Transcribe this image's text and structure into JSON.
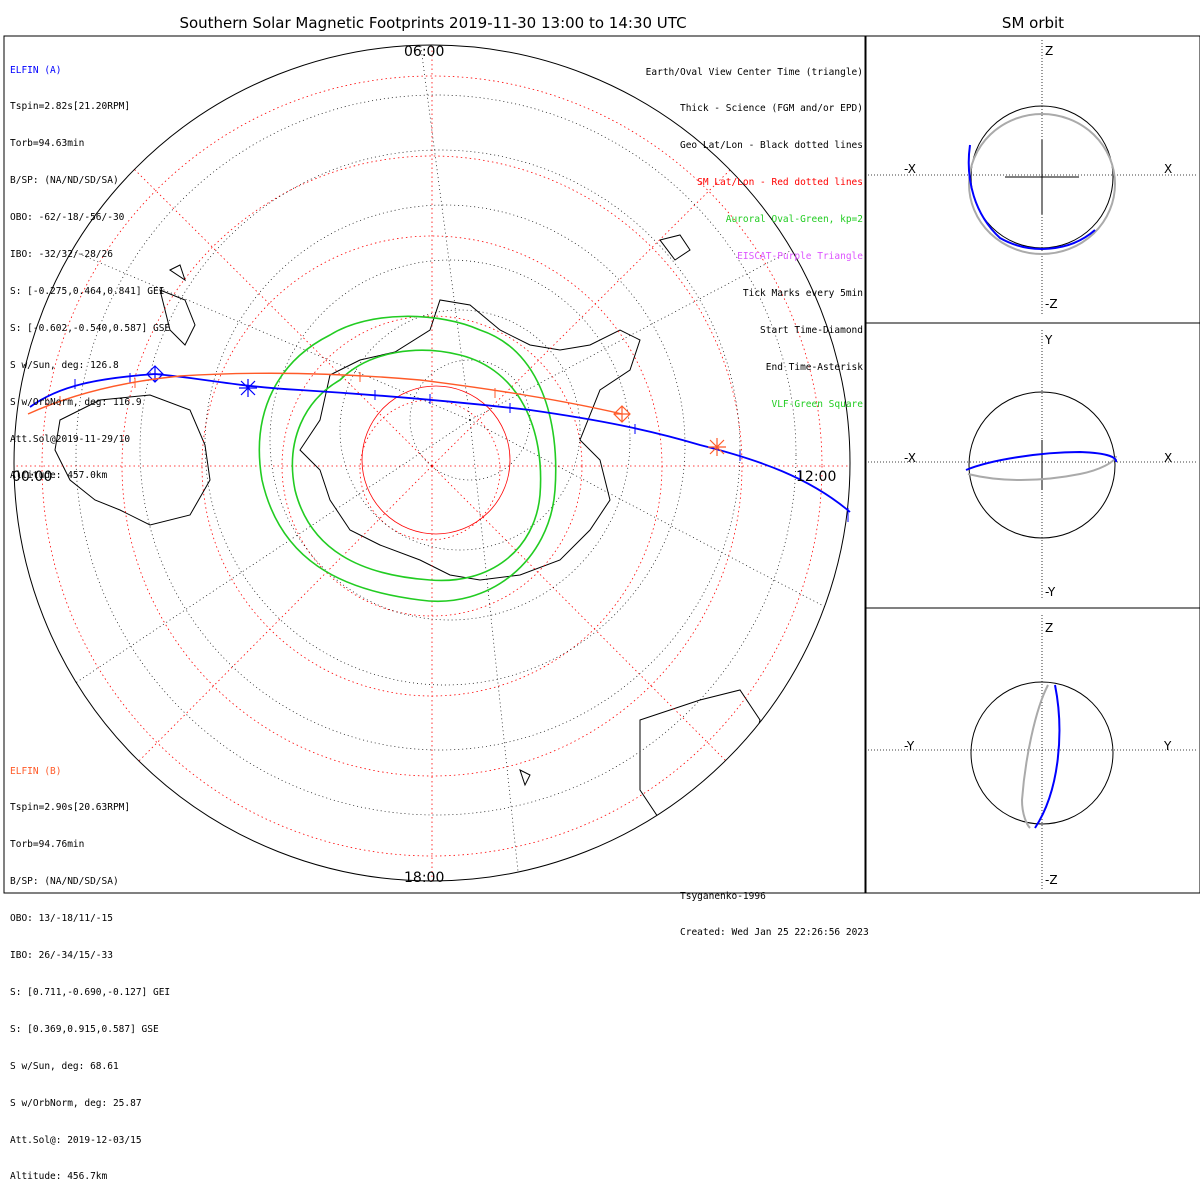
{
  "title": "Southern Solar Magnetic Footprints 2019-11-30 13:00 to 14:30 UTC",
  "side_title": "SM orbit",
  "map_labels": {
    "top": "06:00",
    "left": "00:00",
    "right": "12:00",
    "bottom": "18:00"
  },
  "elfin_a": {
    "name": "ELFIN (A)",
    "color": "#0000ff",
    "lines": [
      "Tspin=2.82s[21.20RPM]",
      "Torb=94.63min",
      "B/SP: (NA/ND/SD/SA)",
      "OBO: -62/-18/-56/-30",
      "IBO: -32/32/-28/26",
      "S: [-0.275,0.464,0.841] GEI",
      "S: [-0.602,-0.540,0.587] GSE",
      "S w/Sun, deg: 126.8",
      "S w/OrbNorm, deg: 116.9",
      "Att.Sol@2019-11-29/10",
      "Altitude: 457.0km"
    ]
  },
  "elfin_b": {
    "name": "ELFIN (B)",
    "color": "#ff5a28",
    "lines": [
      "Tspin=2.90s[20.63RPM]",
      "Torb=94.76min",
      "B/SP: (NA/ND/SD/SA)",
      "OBO: 13/-18/11/-15",
      "IBO: 26/-34/15/-33",
      "S: [0.711,-0.690,-0.127] GEI",
      "S: [0.369,0.915,0.587] GSE",
      "S w/Sun, deg: 68.61",
      "S w/OrbNorm, deg: 25.87",
      "Att.Sol@: 2019-12-03/15",
      "Altitude: 456.7km"
    ]
  },
  "legend": [
    {
      "text": "Earth/Oval View Center Time (triangle)",
      "color": "#000000"
    },
    {
      "text": "Thick - Science (FGM and/or EPD)",
      "color": "#000000"
    },
    {
      "text": "Geo Lat/Lon - Black dotted lines",
      "color": "#000000"
    },
    {
      "text": "SM Lat/Lon - Red dotted lines",
      "color": "#ff0000"
    },
    {
      "text": "Auroral Oval-Green, kp=2",
      "color": "#22cc22"
    },
    {
      "text": "EISCAT-Purple Triangle",
      "color": "#dd55ff"
    },
    {
      "text": "Tick Marks every 5min",
      "color": "#000000"
    },
    {
      "text": "Start Time-Diamond",
      "color": "#000000"
    },
    {
      "text": "End Time-Asterisk",
      "color": "#000000"
    },
    {
      "text": "VLF-Green Square",
      "color": "#22cc22"
    }
  ],
  "credit": {
    "model": "Tsyganenko-1996",
    "created": "Created: Wed Jan 25 22:26:56 2023"
  },
  "panels": [
    {
      "left": "-X",
      "right": "X",
      "top": "Z",
      "bottom": "-Z"
    },
    {
      "left": "-X",
      "right": "X",
      "top": "Y",
      "bottom": "-Y"
    },
    {
      "left": "-Y",
      "right": "Y",
      "top": "Z",
      "bottom": "-Z"
    }
  ]
}
